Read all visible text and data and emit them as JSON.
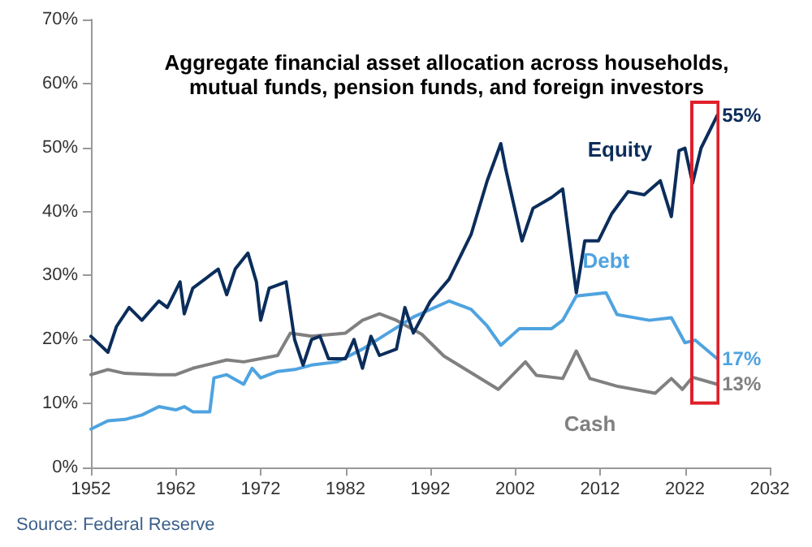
{
  "chart_data": {
    "type": "line",
    "title": "Aggregate financial asset allocation across households,\nmutual funds, pension funds, and foreign investors",
    "annotations": [
      "Source: Federal Reserve"
    ],
    "xlim": [
      1952,
      2032
    ],
    "xticks": [
      1952,
      1962,
      1972,
      1982,
      1992,
      2002,
      2012,
      2022,
      2032
    ],
    "ylim": [
      0,
      70
    ],
    "yticks": [
      {
        "value": 0,
        "label": "0%"
      },
      {
        "value": 10,
        "label": "10%"
      },
      {
        "value": 20,
        "label": "20%"
      },
      {
        "value": 30,
        "label": "30%"
      },
      {
        "value": 40,
        "label": "40%"
      },
      {
        "value": 50,
        "label": "50%"
      },
      {
        "value": 60,
        "label": "60%"
      },
      {
        "value": 70,
        "label": "70%"
      }
    ],
    "grid": false,
    "legend": false,
    "marker": "none",
    "line_style": "solid",
    "series": [
      {
        "name": "Equity",
        "color": "#0b2d5b",
        "x": [
          1952,
          1954,
          1955,
          1956.5,
          1958,
          1960,
          1961,
          1962.5,
          1963,
          1964,
          1966,
          1967,
          1968,
          1969,
          1970.5,
          1971.5,
          1972,
          1973,
          1975,
          1976,
          1977,
          1978,
          1979,
          1980,
          1982,
          1983,
          1984,
          1985,
          1986,
          1988,
          1989,
          1990,
          1992,
          1994.2,
          1996.8,
          1998.7,
          2000.3,
          2000.9,
          2002.8,
          2004.1,
          2006.3,
          2007.6,
          2009.2,
          2010.2,
          2011.8,
          2013.4,
          2015.3,
          2017.2,
          2019.1,
          2020.4,
          2021.3,
          2022,
          2022.9,
          2023.9,
          2025.8
        ],
        "values": [
          20.5,
          18,
          22,
          25,
          23,
          26,
          25,
          29,
          24,
          28,
          30,
          31,
          27,
          31,
          33.5,
          29,
          23,
          28,
          29,
          20,
          16,
          20,
          20.5,
          17,
          17,
          20,
          15.5,
          20.5,
          17.5,
          18.5,
          25,
          21,
          26,
          29.4,
          36.4,
          44.8,
          50.6,
          46.5,
          35.4,
          40.5,
          42.2,
          43.5,
          27.3,
          35.4,
          35.4,
          39.7,
          43.1,
          42.6,
          44.8,
          39.2,
          49.5,
          49.9,
          44.4,
          49.9,
          55
        ],
        "value_labels": [
          null,
          null,
          null,
          null,
          null,
          null,
          null,
          null,
          null,
          null,
          null,
          null,
          null,
          null,
          null,
          null,
          null,
          null,
          null,
          null,
          null,
          null,
          null,
          null,
          null,
          null,
          null,
          null,
          null,
          null,
          null,
          null,
          null,
          null,
          null,
          null,
          null,
          null,
          null,
          null,
          null,
          null,
          null,
          null,
          null,
          null,
          null,
          null,
          null,
          null,
          null,
          null,
          null,
          null,
          "55%"
        ]
      },
      {
        "name": "Debt",
        "color": "#4fa3e0",
        "x": [
          1952,
          1954,
          1956,
          1958,
          1960,
          1962,
          1963,
          1964,
          1966,
          1966.5,
          1968,
          1970,
          1971,
          1972,
          1974,
          1976,
          1978,
          1981,
          1984,
          1987,
          1990,
          1994.2,
          1996.8,
          1998.7,
          2000.3,
          2002.5,
          2006.3,
          2007.6,
          2009.2,
          2012.7,
          2014,
          2017.8,
          2020.4,
          2022,
          2023.2,
          2025.8
        ],
        "values": [
          6,
          7.3,
          7.5,
          8.2,
          9.5,
          9,
          9.5,
          8.7,
          8.7,
          14,
          14.5,
          13,
          15.5,
          14,
          15,
          15.3,
          16,
          16.5,
          18.5,
          21,
          23.5,
          26,
          24.7,
          22.1,
          19.1,
          21.7,
          21.7,
          23,
          26.8,
          27.3,
          23.9,
          23,
          23.4,
          19.5,
          19.9,
          17
        ],
        "value_labels": [
          null,
          null,
          null,
          null,
          null,
          null,
          null,
          null,
          null,
          null,
          null,
          null,
          null,
          null,
          null,
          null,
          null,
          null,
          null,
          null,
          null,
          null,
          null,
          null,
          null,
          null,
          null,
          null,
          null,
          null,
          null,
          null,
          null,
          null,
          null,
          "17%"
        ]
      },
      {
        "name": "Cash",
        "color": "#808080",
        "x": [
          1952,
          1954,
          1956,
          1960,
          1962,
          1964,
          1968,
          1970,
          1974,
          1975.5,
          1978,
          1982,
          1984,
          1986,
          1988,
          1991,
          1993.6,
          1996.8,
          2000,
          2003.2,
          2004.5,
          2007.6,
          2009.2,
          2010.8,
          2014,
          2018.5,
          2020.4,
          2021.7,
          2022.9,
          2025.8
        ],
        "values": [
          14.5,
          15.3,
          14.7,
          14.5,
          14.5,
          15.5,
          16.8,
          16.5,
          17.5,
          21,
          20.5,
          21,
          23,
          24,
          23,
          20.8,
          17.4,
          14.8,
          12.2,
          16.5,
          14.4,
          13.9,
          18.2,
          13.9,
          12.7,
          11.6,
          13.9,
          12.2,
          14.1,
          13
        ],
        "value_labels": [
          null,
          null,
          null,
          null,
          null,
          null,
          null,
          null,
          null,
          null,
          null,
          null,
          null,
          null,
          null,
          null,
          null,
          null,
          null,
          null,
          null,
          null,
          null,
          null,
          null,
          null,
          null,
          null,
          null,
          "13%"
        ]
      }
    ]
  }
}
